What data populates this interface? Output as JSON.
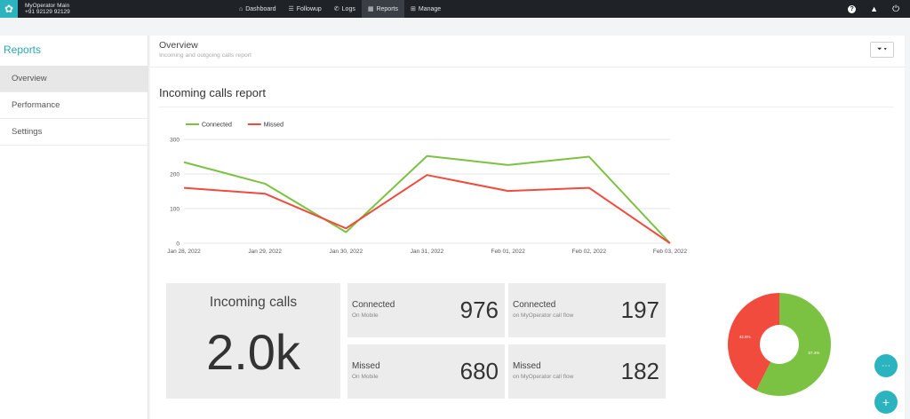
{
  "brand": {
    "name": "MyOperator Main",
    "phone": "+91 92129 92129"
  },
  "nav": [
    {
      "label": "Dashboard",
      "icon": "home-icon"
    },
    {
      "label": "Followup",
      "icon": "list-icon"
    },
    {
      "label": "Logs",
      "icon": "phone-icon"
    },
    {
      "label": "Reports",
      "icon": "chart-icon",
      "active": true
    },
    {
      "label": "Manage",
      "icon": "grid-icon"
    }
  ],
  "topright_icons": [
    "help-icon",
    "bell-icon",
    "power-icon"
  ],
  "sidebar": {
    "title": "Reports",
    "items": [
      {
        "label": "Overview",
        "active": true
      },
      {
        "label": "Performance"
      },
      {
        "label": "Settings"
      }
    ]
  },
  "header": {
    "title": "Overview",
    "subtitle": "Incoming and outgoing calls report",
    "filter_icon": "filter-icon"
  },
  "section": {
    "title": "Incoming calls report"
  },
  "chart_data": {
    "type": "line",
    "x": [
      "Jan 28, 2022",
      "Jan 29, 2022",
      "Jan 30, 2022",
      "Jan 31, 2022",
      "Feb 01, 2022",
      "Feb 02, 2022",
      "Feb 03, 2022"
    ],
    "series": [
      {
        "name": "Connected",
        "color": "#7cc242",
        "values": [
          234,
          172,
          32,
          252,
          226,
          250,
          0
        ]
      },
      {
        "name": "Missed",
        "color": "#f04b3c",
        "values": [
          160,
          143,
          43,
          197,
          151,
          160,
          0
        ]
      }
    ],
    "yticks": [
      0,
      100,
      200,
      300
    ],
    "ylim": [
      0,
      300
    ],
    "legend": "top-left",
    "grid": true
  },
  "stats": {
    "incoming": {
      "label": "Incoming calls",
      "value": "2.0k"
    },
    "connected_mobile": {
      "label": "Connected",
      "sub": "On Mobile",
      "value": "976"
    },
    "connected_flow": {
      "label": "Connected",
      "sub": "on MyOperator call flow",
      "value": "197"
    },
    "missed_mobile": {
      "label": "Missed",
      "sub": "On Mobile",
      "value": "680"
    },
    "missed_flow": {
      "label": "Missed",
      "sub": "on MyOperator call flow",
      "value": "182"
    }
  },
  "donut": {
    "slices": [
      {
        "name": "Connected",
        "percent": 57.4,
        "label": "57.4%",
        "color": "#7cc242"
      },
      {
        "name": "Missed",
        "percent": 42.6,
        "label": "42.6%",
        "color": "#f04b3c"
      }
    ]
  },
  "fab": {
    "more_icon": "more-icon",
    "add_icon": "add-icon"
  }
}
